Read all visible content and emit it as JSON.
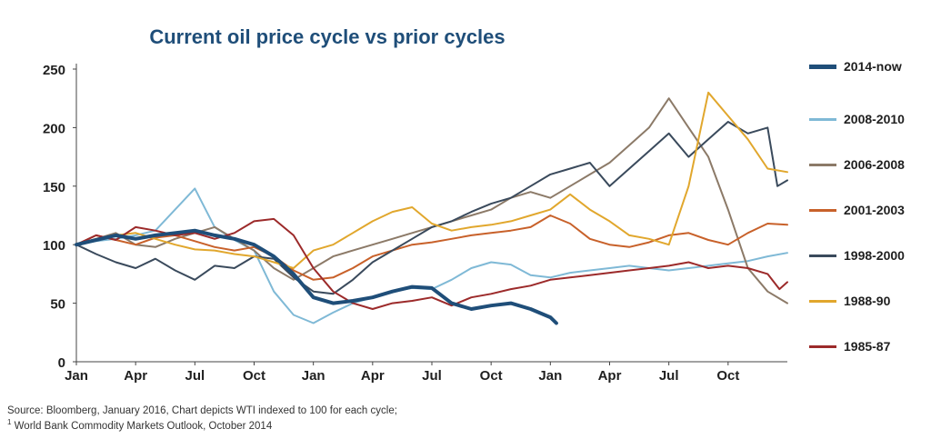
{
  "chart_data": {
    "type": "line",
    "title": "Current oil price cycle vs prior cycles",
    "xlabel": "",
    "ylabel": "",
    "ylim": [
      0,
      250
    ],
    "yticks": [
      0,
      50,
      100,
      150,
      200,
      250
    ],
    "xlim": [
      0,
      36
    ],
    "xtick_labels": [
      "Jan",
      "Apr",
      "Jul",
      "Oct",
      "Jan",
      "Apr",
      "Jul",
      "Oct",
      "Jan",
      "Apr",
      "Jul",
      "Oct"
    ],
    "xtick_positions": [
      0,
      3,
      6,
      9,
      12,
      15,
      18,
      21,
      24,
      27,
      30,
      33
    ],
    "grid": false,
    "legend_position": "right",
    "series": [
      {
        "name": "2014-now",
        "color": "#1f4e79",
        "width": 4,
        "x": [
          0,
          1,
          2,
          3,
          4,
          5,
          6,
          7,
          8,
          9,
          10,
          11,
          12,
          13,
          14,
          15,
          16,
          17,
          18,
          19,
          20,
          21,
          22,
          23,
          24,
          24.3
        ],
        "y": [
          100,
          104,
          108,
          105,
          108,
          110,
          112,
          108,
          105,
          100,
          90,
          75,
          55,
          50,
          52,
          55,
          60,
          64,
          63,
          50,
          45,
          48,
          50,
          45,
          38,
          33
        ]
      },
      {
        "name": "2008-2010",
        "color": "#7fb9d6",
        "width": 2,
        "x": [
          0,
          1,
          2,
          3,
          4,
          5,
          6,
          7,
          8,
          9,
          10,
          11,
          12,
          13,
          14,
          15,
          16,
          17,
          18,
          19,
          20,
          21,
          22,
          23,
          24,
          25,
          26,
          27,
          28,
          29,
          30,
          31,
          32,
          33,
          34,
          35,
          36
        ],
        "y": [
          100,
          103,
          105,
          108,
          112,
          130,
          148,
          115,
          104,
          95,
          60,
          40,
          33,
          42,
          50,
          55,
          60,
          63,
          62,
          70,
          80,
          85,
          83,
          74,
          72,
          76,
          78,
          80,
          82,
          80,
          78,
          80,
          82,
          84,
          86,
          90,
          93
        ]
      },
      {
        "name": "2006-2008",
        "color": "#8c7a68",
        "width": 2,
        "x": [
          0,
          1,
          2,
          3,
          4,
          5,
          6,
          7,
          8,
          9,
          10,
          11,
          12,
          13,
          14,
          15,
          16,
          17,
          18,
          19,
          20,
          21,
          22,
          23,
          24,
          25,
          26,
          27,
          28,
          29,
          30,
          31,
          32,
          33,
          34,
          35,
          36
        ],
        "y": [
          100,
          105,
          110,
          100,
          98,
          105,
          110,
          115,
          105,
          95,
          80,
          70,
          80,
          90,
          95,
          100,
          105,
          110,
          115,
          120,
          125,
          130,
          140,
          145,
          140,
          150,
          160,
          170,
          185,
          200,
          225,
          200,
          175,
          130,
          80,
          60,
          50
        ]
      },
      {
        "name": "2001-2003",
        "color": "#c8612a",
        "width": 2,
        "x": [
          0,
          1,
          2,
          3,
          4,
          5,
          6,
          7,
          8,
          9,
          10,
          11,
          12,
          13,
          14,
          15,
          16,
          17,
          18,
          19,
          20,
          21,
          22,
          23,
          24,
          25,
          26,
          27,
          28,
          29,
          30,
          31,
          32,
          33,
          34,
          35,
          36
        ],
        "y": [
          100,
          108,
          104,
          100,
          106,
          108,
          103,
          98,
          95,
          98,
          90,
          78,
          70,
          72,
          80,
          90,
          95,
          100,
          102,
          105,
          108,
          110,
          112,
          115,
          125,
          118,
          105,
          100,
          98,
          102,
          108,
          110,
          104,
          100,
          110,
          118,
          117
        ]
      },
      {
        "name": "1998-2000",
        "color": "#3a4a5c",
        "width": 2,
        "x": [
          0,
          1,
          2,
          3,
          4,
          5,
          6,
          7,
          8,
          9,
          10,
          11,
          12,
          13,
          14,
          15,
          16,
          17,
          18,
          19,
          20,
          21,
          22,
          23,
          24,
          25,
          26,
          27,
          28,
          29,
          30,
          31,
          32,
          33,
          34,
          35,
          35.5,
          36
        ],
        "y": [
          100,
          92,
          85,
          80,
          88,
          78,
          70,
          82,
          80,
          90,
          88,
          72,
          60,
          58,
          70,
          85,
          95,
          105,
          115,
          120,
          128,
          135,
          140,
          150,
          160,
          165,
          170,
          150,
          165,
          180,
          195,
          175,
          190,
          205,
          195,
          200,
          150,
          155
        ]
      },
      {
        "name": "1988-90",
        "color": "#e1a72d",
        "width": 2,
        "x": [
          0,
          1,
          2,
          3,
          4,
          5,
          6,
          7,
          8,
          9,
          10,
          11,
          12,
          13,
          14,
          15,
          16,
          17,
          18,
          19,
          20,
          21,
          22,
          23,
          24,
          25,
          26,
          27,
          28,
          29,
          30,
          31,
          32,
          33,
          34,
          35,
          36
        ],
        "y": [
          100,
          105,
          108,
          110,
          105,
          100,
          96,
          95,
          92,
          90,
          85,
          80,
          95,
          100,
          110,
          120,
          128,
          132,
          118,
          112,
          115,
          117,
          120,
          125,
          130,
          143,
          130,
          120,
          108,
          105,
          100,
          150,
          230,
          210,
          190,
          165,
          162
        ]
      },
      {
        "name": "1985-87",
        "color": "#9c2a2a",
        "width": 2,
        "x": [
          0,
          1,
          2,
          3,
          4,
          5,
          6,
          7,
          8,
          9,
          10,
          11,
          12,
          13,
          14,
          15,
          16,
          17,
          18,
          19,
          20,
          21,
          22,
          23,
          24,
          25,
          26,
          27,
          28,
          29,
          30,
          31,
          32,
          33,
          34,
          35,
          35.6,
          36
        ],
        "y": [
          100,
          108,
          104,
          115,
          112,
          108,
          110,
          105,
          110,
          120,
          122,
          108,
          80,
          60,
          50,
          45,
          50,
          52,
          55,
          48,
          55,
          58,
          62,
          65,
          70,
          72,
          74,
          76,
          78,
          80,
          82,
          85,
          80,
          82,
          80,
          75,
          62,
          68
        ]
      }
    ]
  },
  "footnote": {
    "line1": "Source: Bloomberg, January 2016, Chart depicts WTI indexed to 100 for each cycle;",
    "line2_sup": "1",
    "line2": " World Bank Commodity Markets Outlook, October 2014"
  }
}
